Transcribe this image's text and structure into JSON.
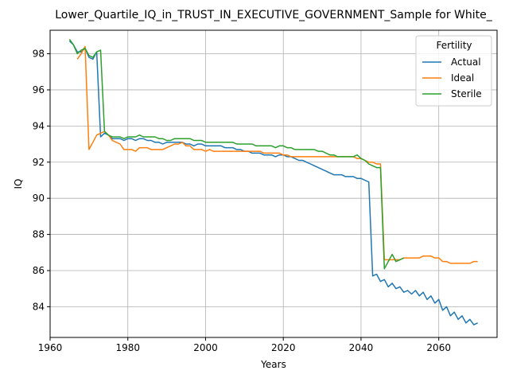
{
  "chart_data": {
    "type": "line",
    "title": "Lower_Quartile_IQ_in_TRUST_IN_EXECUTIVE_GOVERNMENT_Sample for White_",
    "xlabel": "Years",
    "ylabel": "IQ",
    "xlim": [
      1960,
      2075
    ],
    "ylim": [
      82.3,
      99.3
    ],
    "xticks": [
      1960,
      1980,
      2000,
      2020,
      2040,
      2060
    ],
    "yticks": [
      84,
      86,
      88,
      90,
      92,
      94,
      96,
      98
    ],
    "grid": true,
    "legend": {
      "title": "Fertility",
      "placement": "top-right"
    },
    "series": [
      {
        "name": "Actual",
        "color": "#1f77b4",
        "points": [
          [
            1965,
            98.7
          ],
          [
            1966,
            98.5
          ],
          [
            1967,
            98.1
          ],
          [
            1968,
            98.1
          ],
          [
            1969,
            98.3
          ],
          [
            1970,
            97.8
          ],
          [
            1971,
            97.7
          ],
          [
            1972,
            98.1
          ],
          [
            1973,
            93.4
          ],
          [
            1974,
            93.6
          ],
          [
            1975,
            93.5
          ],
          [
            1976,
            93.3
          ],
          [
            1977,
            93.3
          ],
          [
            1978,
            93.3
          ],
          [
            1979,
            93.2
          ],
          [
            1980,
            93.3
          ],
          [
            1981,
            93.3
          ],
          [
            1982,
            93.2
          ],
          [
            1983,
            93.3
          ],
          [
            1984,
            93.3
          ],
          [
            1985,
            93.2
          ],
          [
            1986,
            93.2
          ],
          [
            1987,
            93.1
          ],
          [
            1988,
            93.1
          ],
          [
            1989,
            93.0
          ],
          [
            1990,
            93.1
          ],
          [
            1991,
            93.1
          ],
          [
            1992,
            93.1
          ],
          [
            1993,
            93.1
          ],
          [
            1994,
            93.1
          ],
          [
            1995,
            93.0
          ],
          [
            1996,
            93.0
          ],
          [
            1997,
            92.9
          ],
          [
            1998,
            93.0
          ],
          [
            1999,
            93.0
          ],
          [
            2000,
            92.9
          ],
          [
            2001,
            92.9
          ],
          [
            2002,
            92.9
          ],
          [
            2003,
            92.9
          ],
          [
            2004,
            92.9
          ],
          [
            2005,
            92.8
          ],
          [
            2006,
            92.8
          ],
          [
            2007,
            92.8
          ],
          [
            2008,
            92.7
          ],
          [
            2009,
            92.7
          ],
          [
            2010,
            92.6
          ],
          [
            2011,
            92.6
          ],
          [
            2012,
            92.5
          ],
          [
            2013,
            92.5
          ],
          [
            2014,
            92.5
          ],
          [
            2015,
            92.4
          ],
          [
            2016,
            92.4
          ],
          [
            2017,
            92.4
          ],
          [
            2018,
            92.3
          ],
          [
            2019,
            92.4
          ],
          [
            2020,
            92.4
          ],
          [
            2021,
            92.3
          ],
          [
            2022,
            92.3
          ],
          [
            2023,
            92.2
          ],
          [
            2024,
            92.1
          ],
          [
            2025,
            92.1
          ],
          [
            2026,
            92.0
          ],
          [
            2027,
            91.9
          ],
          [
            2028,
            91.8
          ],
          [
            2029,
            91.7
          ],
          [
            2030,
            91.6
          ],
          [
            2031,
            91.5
          ],
          [
            2032,
            91.4
          ],
          [
            2033,
            91.3
          ],
          [
            2034,
            91.3
          ],
          [
            2035,
            91.3
          ],
          [
            2036,
            91.2
          ],
          [
            2037,
            91.2
          ],
          [
            2038,
            91.2
          ],
          [
            2039,
            91.1
          ],
          [
            2040,
            91.1
          ],
          [
            2041,
            91.0
          ],
          [
            2042,
            90.9
          ],
          [
            2043,
            85.7
          ],
          [
            2044,
            85.8
          ],
          [
            2045,
            85.4
          ],
          [
            2046,
            85.5
          ],
          [
            2047,
            85.1
          ],
          [
            2048,
            85.3
          ],
          [
            2049,
            85.0
          ],
          [
            2050,
            85.1
          ],
          [
            2051,
            84.8
          ],
          [
            2052,
            84.9
          ],
          [
            2053,
            84.7
          ],
          [
            2054,
            84.9
          ],
          [
            2055,
            84.6
          ],
          [
            2056,
            84.8
          ],
          [
            2057,
            84.4
          ],
          [
            2058,
            84.6
          ],
          [
            2059,
            84.2
          ],
          [
            2060,
            84.4
          ],
          [
            2061,
            83.8
          ],
          [
            2062,
            84.0
          ],
          [
            2063,
            83.5
          ],
          [
            2064,
            83.7
          ],
          [
            2065,
            83.3
          ],
          [
            2066,
            83.5
          ],
          [
            2067,
            83.1
          ],
          [
            2068,
            83.3
          ],
          [
            2069,
            83.0
          ],
          [
            2070,
            83.1
          ]
        ]
      },
      {
        "name": "Ideal",
        "color": "#ff7f0e",
        "points": [
          [
            1967,
            97.7
          ],
          [
            1968,
            98.0
          ],
          [
            1969,
            98.4
          ],
          [
            1970,
            92.7
          ],
          [
            1971,
            93.1
          ],
          [
            1972,
            93.5
          ],
          [
            1973,
            93.6
          ],
          [
            1974,
            93.7
          ],
          [
            1975,
            93.5
          ],
          [
            1976,
            93.2
          ],
          [
            1977,
            93.1
          ],
          [
            1978,
            93.0
          ],
          [
            1979,
            92.7
          ],
          [
            1980,
            92.7
          ],
          [
            1981,
            92.7
          ],
          [
            1982,
            92.6
          ],
          [
            1983,
            92.8
          ],
          [
            1984,
            92.8
          ],
          [
            1985,
            92.8
          ],
          [
            1986,
            92.7
          ],
          [
            1987,
            92.7
          ],
          [
            1988,
            92.7
          ],
          [
            1989,
            92.7
          ],
          [
            1990,
            92.8
          ],
          [
            1991,
            92.9
          ],
          [
            1992,
            93.0
          ],
          [
            1993,
            93.0
          ],
          [
            1994,
            93.1
          ],
          [
            1995,
            92.9
          ],
          [
            1996,
            92.9
          ],
          [
            1997,
            92.7
          ],
          [
            1998,
            92.7
          ],
          [
            1999,
            92.7
          ],
          [
            2000,
            92.6
          ],
          [
            2001,
            92.7
          ],
          [
            2002,
            92.6
          ],
          [
            2003,
            92.6
          ],
          [
            2004,
            92.6
          ],
          [
            2005,
            92.6
          ],
          [
            2006,
            92.6
          ],
          [
            2007,
            92.6
          ],
          [
            2008,
            92.6
          ],
          [
            2009,
            92.6
          ],
          [
            2010,
            92.6
          ],
          [
            2011,
            92.6
          ],
          [
            2012,
            92.6
          ],
          [
            2013,
            92.6
          ],
          [
            2014,
            92.6
          ],
          [
            2015,
            92.5
          ],
          [
            2016,
            92.5
          ],
          [
            2017,
            92.5
          ],
          [
            2018,
            92.5
          ],
          [
            2019,
            92.5
          ],
          [
            2020,
            92.4
          ],
          [
            2021,
            92.4
          ],
          [
            2022,
            92.3
          ],
          [
            2023,
            92.3
          ],
          [
            2024,
            92.3
          ],
          [
            2025,
            92.3
          ],
          [
            2026,
            92.3
          ],
          [
            2027,
            92.3
          ],
          [
            2028,
            92.3
          ],
          [
            2029,
            92.3
          ],
          [
            2030,
            92.3
          ],
          [
            2031,
            92.3
          ],
          [
            2032,
            92.3
          ],
          [
            2033,
            92.3
          ],
          [
            2034,
            92.3
          ],
          [
            2035,
            92.3
          ],
          [
            2036,
            92.3
          ],
          [
            2037,
            92.3
          ],
          [
            2038,
            92.3
          ],
          [
            2039,
            92.2
          ],
          [
            2040,
            92.2
          ],
          [
            2041,
            92.1
          ],
          [
            2042,
            92.0
          ],
          [
            2043,
            92.0
          ],
          [
            2044,
            91.9
          ],
          [
            2045,
            91.9
          ],
          [
            2046,
            86.6
          ],
          [
            2047,
            86.6
          ],
          [
            2048,
            86.6
          ],
          [
            2049,
            86.6
          ],
          [
            2050,
            86.6
          ],
          [
            2051,
            86.7
          ],
          [
            2052,
            86.7
          ],
          [
            2053,
            86.7
          ],
          [
            2054,
            86.7
          ],
          [
            2055,
            86.7
          ],
          [
            2056,
            86.8
          ],
          [
            2057,
            86.8
          ],
          [
            2058,
            86.8
          ],
          [
            2059,
            86.7
          ],
          [
            2060,
            86.7
          ],
          [
            2061,
            86.5
          ],
          [
            2062,
            86.5
          ],
          [
            2063,
            86.4
          ],
          [
            2064,
            86.4
          ],
          [
            2065,
            86.4
          ],
          [
            2066,
            86.4
          ],
          [
            2067,
            86.4
          ],
          [
            2068,
            86.4
          ],
          [
            2069,
            86.5
          ],
          [
            2070,
            86.5
          ]
        ]
      },
      {
        "name": "Sterile",
        "color": "#2ca02c",
        "points": [
          [
            1965,
            98.8
          ],
          [
            1966,
            98.5
          ],
          [
            1967,
            98.0
          ],
          [
            1968,
            98.2
          ],
          [
            1969,
            98.3
          ],
          [
            1970,
            97.9
          ],
          [
            1971,
            97.8
          ],
          [
            1972,
            98.1
          ],
          [
            1973,
            98.2
          ],
          [
            1974,
            93.7
          ],
          [
            1975,
            93.5
          ],
          [
            1976,
            93.4
          ],
          [
            1977,
            93.4
          ],
          [
            1978,
            93.4
          ],
          [
            1979,
            93.3
          ],
          [
            1980,
            93.4
          ],
          [
            1981,
            93.4
          ],
          [
            1982,
            93.4
          ],
          [
            1983,
            93.5
          ],
          [
            1984,
            93.4
          ],
          [
            1985,
            93.4
          ],
          [
            1986,
            93.4
          ],
          [
            1987,
            93.4
          ],
          [
            1988,
            93.3
          ],
          [
            1989,
            93.3
          ],
          [
            1990,
            93.2
          ],
          [
            1991,
            93.2
          ],
          [
            1992,
            93.3
          ],
          [
            1993,
            93.3
          ],
          [
            1994,
            93.3
          ],
          [
            1995,
            93.3
          ],
          [
            1996,
            93.3
          ],
          [
            1997,
            93.2
          ],
          [
            1998,
            93.2
          ],
          [
            1999,
            93.2
          ],
          [
            2000,
            93.1
          ],
          [
            2001,
            93.1
          ],
          [
            2002,
            93.1
          ],
          [
            2003,
            93.1
          ],
          [
            2004,
            93.1
          ],
          [
            2005,
            93.1
          ],
          [
            2006,
            93.1
          ],
          [
            2007,
            93.1
          ],
          [
            2008,
            93.0
          ],
          [
            2009,
            93.0
          ],
          [
            2010,
            93.0
          ],
          [
            2011,
            93.0
          ],
          [
            2012,
            93.0
          ],
          [
            2013,
            92.9
          ],
          [
            2014,
            92.9
          ],
          [
            2015,
            92.9
          ],
          [
            2016,
            92.9
          ],
          [
            2017,
            92.9
          ],
          [
            2018,
            92.8
          ],
          [
            2019,
            92.9
          ],
          [
            2020,
            92.9
          ],
          [
            2021,
            92.8
          ],
          [
            2022,
            92.8
          ],
          [
            2023,
            92.7
          ],
          [
            2024,
            92.7
          ],
          [
            2025,
            92.7
          ],
          [
            2026,
            92.7
          ],
          [
            2027,
            92.7
          ],
          [
            2028,
            92.7
          ],
          [
            2029,
            92.6
          ],
          [
            2030,
            92.6
          ],
          [
            2031,
            92.5
          ],
          [
            2032,
            92.4
          ],
          [
            2033,
            92.4
          ],
          [
            2034,
            92.3
          ],
          [
            2035,
            92.3
          ],
          [
            2036,
            92.3
          ],
          [
            2037,
            92.3
          ],
          [
            2038,
            92.3
          ],
          [
            2039,
            92.4
          ],
          [
            2040,
            92.2
          ],
          [
            2041,
            92.1
          ],
          [
            2042,
            91.9
          ],
          [
            2043,
            91.8
          ],
          [
            2044,
            91.7
          ],
          [
            2045,
            91.7
          ],
          [
            2046,
            86.1
          ],
          [
            2047,
            86.5
          ],
          [
            2048,
            86.9
          ],
          [
            2049,
            86.5
          ],
          [
            2050,
            86.6
          ],
          [
            2051,
            86.7
          ]
        ]
      }
    ]
  }
}
